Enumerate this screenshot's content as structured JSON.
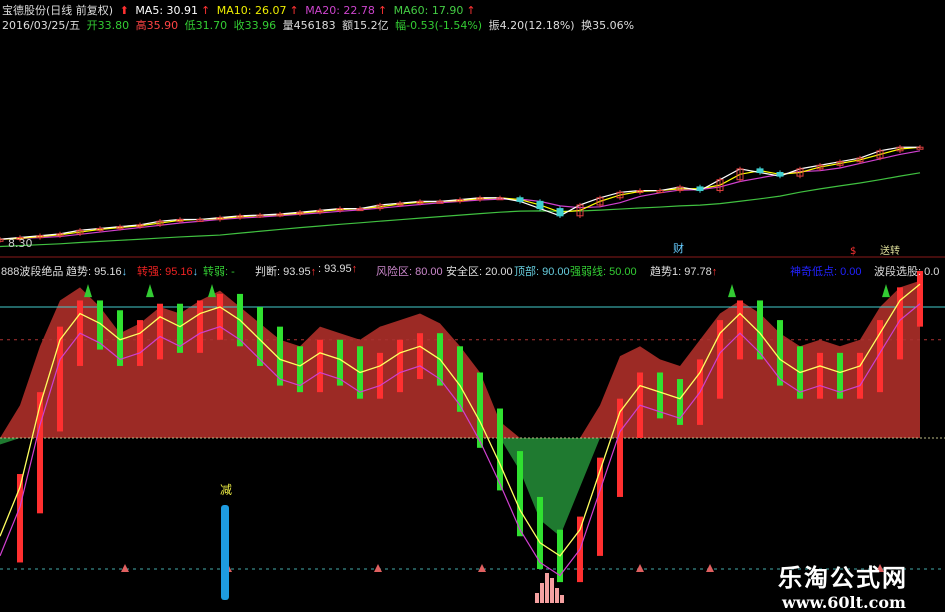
{
  "header": {
    "name": "宝德股份(日线 前复权)",
    "ma5": "MA5: 30.91",
    "ma10": "MA10: 26.07",
    "ma20": "MA20: 22.78",
    "ma60": "MA60: 17.90",
    "date": "2016/03/25/五",
    "open": "开33.80",
    "high": "高35.90",
    "low": "低31.70",
    "close": "收33.96",
    "volume": "量456183",
    "amount": "额15.2亿",
    "change": "幅-0.53(-1.54%)",
    "amplitude": "振4.20(12.18%)",
    "turnover": "换35.06%"
  },
  "price_panel": {
    "low_label": "8.30",
    "marker_cai": "财",
    "marker_s": "$",
    "marker_song": "送转"
  },
  "indicator_header": {
    "name": "888波段绝品",
    "trend": "趋势: 95.16",
    "strong": "转强: 95.16",
    "weak": "转弱: -",
    "judge": "判断: 93.95",
    "judge2": ": 93.95",
    "risk": "风险区: 80.00",
    "safe": "安全区: 20.00",
    "top": "顶部: 90.00",
    "strongline": "强弱线: 50.00",
    "trend1": "趋势1: 97.78",
    "magic": "神奇低点: 0.00",
    "pick": "波段选股: 0.0"
  },
  "indicator_panel": {
    "reduce_label": "减"
  },
  "watermark": {
    "name": "乐淘公式网",
    "url": "www.60lt.com"
  },
  "colors": {
    "up": "#ff3030",
    "down": "#30e030",
    "area_up": "#9c2a25",
    "area_down": "#1f7a30",
    "trend": "#ffff60",
    "ma5": "#ffffff",
    "ma10": "#ffff00",
    "ma20": "#d040d0",
    "ma60": "#40c040"
  },
  "chart_data": [
    {
      "type": "candlestick",
      "title": "宝德股份(日线 前复权)",
      "closes": [
        8.5,
        9,
        9.5,
        10,
        11,
        11.5,
        12,
        12.5,
        13.5,
        14,
        14,
        14.5,
        15,
        15.2,
        15.5,
        16,
        16.5,
        17,
        17,
        18,
        18.5,
        19,
        19,
        19.5,
        20,
        20,
        19,
        17,
        15,
        18,
        20,
        21.5,
        22,
        22,
        23,
        22,
        25,
        28,
        27,
        26,
        28,
        29,
        30,
        31,
        33,
        34,
        34
      ],
      "ylim": [
        8.3,
        36
      ]
    },
    {
      "type": "area",
      "title": "888波段绝品",
      "ylim": [
        0,
        100
      ],
      "levels": [
        90,
        80,
        50,
        20
      ],
      "envelope": [
        48,
        60,
        78,
        92,
        96,
        90,
        82,
        85,
        90,
        88,
        92,
        95,
        90,
        85,
        80,
        78,
        84,
        82,
        80,
        84,
        86,
        88,
        85,
        78,
        70,
        55,
        40,
        25,
        20,
        35,
        60,
        75,
        78,
        74,
        72,
        80,
        88,
        92,
        88,
        82,
        78,
        80,
        78,
        80,
        90,
        96,
        98
      ],
      "trend": [
        20,
        35,
        60,
        80,
        88,
        85,
        80,
        82,
        87,
        84,
        88,
        90,
        86,
        80,
        74,
        72,
        76,
        74,
        70,
        72,
        76,
        78,
        74,
        66,
        55,
        42,
        28,
        18,
        14,
        22,
        40,
        58,
        66,
        64,
        62,
        70,
        82,
        88,
        82,
        74,
        70,
        72,
        70,
        72,
        82,
        92,
        97
      ]
    }
  ]
}
